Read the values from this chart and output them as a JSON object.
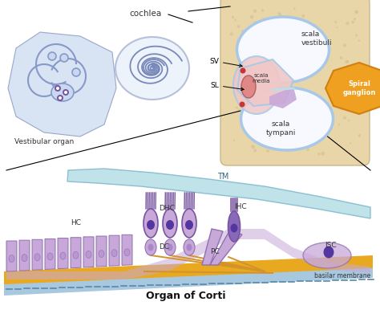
{
  "title": "Organ of Corti",
  "bg_color": "#ffffff",
  "labels": {
    "vestibular_organ": "Vestibular organ",
    "cochlea": "cochlea",
    "scala_vestibuli": "scala\nvestibuli",
    "scala_media": "scala\nmedia",
    "scala_tympani": "scala\ntympani",
    "SV": "SV",
    "SL": "SL",
    "spiral_ganglion": "Spiral\nganglion",
    "TM": "TM",
    "HC": "HC",
    "DHC": "DHC",
    "IHC": "IHC",
    "DC": "DC",
    "PC": "PC",
    "ISC": "ISC",
    "basilar_membrane": "basilar membrane",
    "organ_of_corti": "Organ of Corti"
  },
  "colors": {
    "bone_bg": "#e8d5a8",
    "scala_fluid": "#ffffff",
    "membrane_blue": "#a8c8e8",
    "membrane_light": "#c8dff0",
    "scala_media_pink": "#f0c8c8",
    "cell_purple": "#c8a8d8",
    "cell_dark_purple": "#7855a0",
    "nucleus_dark": "#5535a0",
    "hair_cell_purple": "#8868b8",
    "tectorial_membrane": "#b8e0e8",
    "basilar_orange": "#e8a820",
    "nerve_orange": "#d4922a",
    "vestibular_blue": "#8898c8",
    "vestibular_light": "#c8d8f0",
    "cochlea_outline": "#7888b8",
    "pink_region": "#e8b8b8",
    "isc_color": "#c8a8d8",
    "basement_blue": "#a8c8e0"
  }
}
